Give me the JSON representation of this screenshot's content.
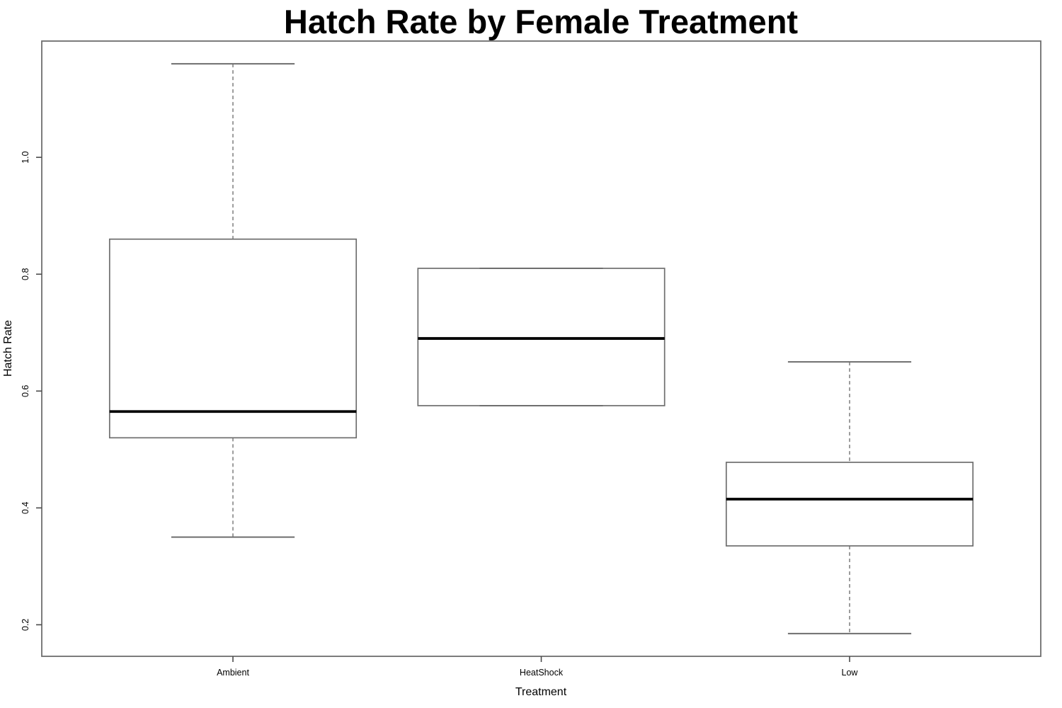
{
  "chart_data": {
    "type": "boxplot",
    "title": "Hatch Rate by Female Treatment",
    "xlabel": "Treatment",
    "ylabel": "Hatch Rate",
    "categories": [
      "Ambient",
      "HeatShock",
      "Low"
    ],
    "y_ticks": [
      "0.2",
      "0.4",
      "0.6",
      "0.8",
      "1.0"
    ],
    "ylim": [
      0.146,
      1.199
    ],
    "grid": false,
    "legend": false,
    "orientation": "vertical",
    "box_width_data_units": 0.8,
    "series": [
      {
        "name": "Ambient",
        "whisker_low": 0.35,
        "q1": 0.52,
        "median": 0.565,
        "q3": 0.86,
        "whisker_high": 1.16
      },
      {
        "name": "HeatShock",
        "whisker_low": 0.575,
        "q1": 0.575,
        "median": 0.69,
        "q3": 0.81,
        "whisker_high": 0.81
      },
      {
        "name": "Low",
        "whisker_low": 0.185,
        "q1": 0.335,
        "median": 0.415,
        "q3": 0.478,
        "whisker_high": 0.65
      }
    ],
    "colors": {
      "box_border": "#6e6e6e",
      "median": "#000000",
      "whisker_dash": "#7d7d7d",
      "axis_tick": "#4a4a4a",
      "text": "#000000",
      "background": "#ffffff"
    }
  }
}
